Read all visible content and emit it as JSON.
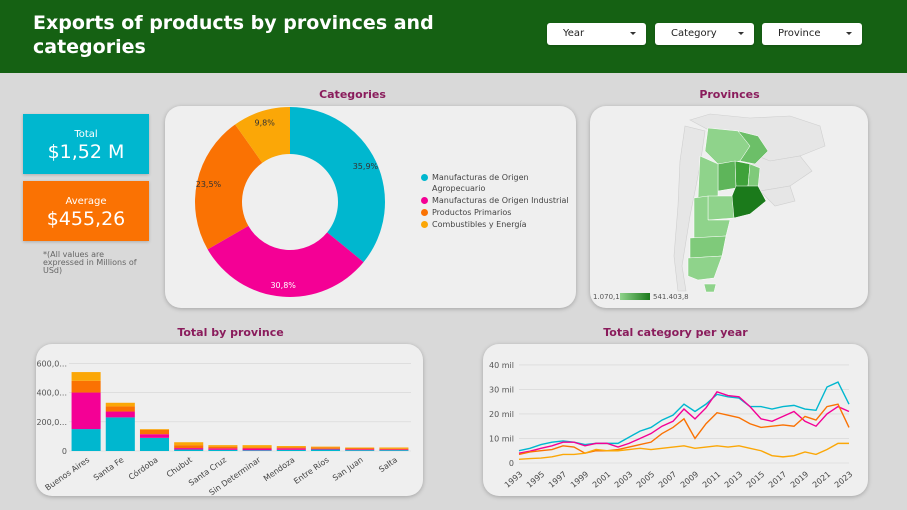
{
  "header": {
    "title": "Exports of products by provinces and categories",
    "filters": [
      {
        "label": "Year"
      },
      {
        "label": "Category"
      },
      {
        "label": "Province"
      }
    ]
  },
  "kpis": {
    "total": {
      "label": "Total",
      "value": "$1,52 M",
      "color": "#00b7cf"
    },
    "average": {
      "label": "Average",
      "value": "$455,26",
      "color": "#fa7203"
    },
    "note": "*(All values are expressed in Millions of USd)"
  },
  "sections": {
    "categories": "Categories",
    "provinces": "Provinces",
    "by_province": "Total by province",
    "per_year": "Total category per year"
  },
  "colors": {
    "header": "#156113",
    "agro": "#00b7cf",
    "industrial": "#f40095",
    "primarios": "#fa7203",
    "energia": "#fba707",
    "map_dark": "#1b7a1b",
    "map_light": "#8fd38b"
  },
  "map": {
    "legend_min": "1.070,1",
    "legend_max": "541.403,8"
  },
  "chart_data": [
    {
      "type": "pie",
      "title": "Categories",
      "categories": [
        "Manufacturas de Origen Agropecuario",
        "Manufacturas de Origen Industrial",
        "Productos Primarios",
        "Combustibles y Energía"
      ],
      "values": [
        35.9,
        30.8,
        23.5,
        9.8
      ],
      "labels": [
        "35,9%",
        "30,8%",
        "23,5%",
        "9,8%"
      ],
      "colors": [
        "#00b7cf",
        "#f40095",
        "#fa7203",
        "#fba707"
      ],
      "legend": "right"
    },
    {
      "type": "bar",
      "stacked": true,
      "title": "Total by province",
      "categories": [
        "Buenos Aires",
        "Santa Fe",
        "Córdoba",
        "Chubut",
        "Santa Cruz",
        "Sin Determinar",
        "Mendoza",
        "Entre Ríos",
        "San Juan",
        "Salta"
      ],
      "series": [
        {
          "values": [
            150,
            230,
            90,
            10,
            8,
            5,
            8,
            10,
            6,
            6
          ],
          "color": "#00b7cf"
        },
        {
          "values": [
            250,
            40,
            25,
            10,
            10,
            12,
            10,
            5,
            6,
            5
          ],
          "color": "#f40095"
        },
        {
          "values": [
            80,
            35,
            30,
            20,
            12,
            8,
            8,
            10,
            8,
            5
          ],
          "color": "#fa7203"
        },
        {
          "values": [
            60,
            25,
            5,
            20,
            10,
            15,
            8,
            5,
            4,
            8
          ],
          "color": "#fba707"
        }
      ],
      "yticks": [
        "0",
        "200,0...",
        "400,0...",
        "600,0..."
      ],
      "ylim": [
        0,
        650
      ],
      "grid": true
    },
    {
      "type": "line",
      "title": "Total category per year",
      "x": [
        1993,
        1994,
        1995,
        1996,
        1997,
        1998,
        1999,
        2000,
        2001,
        2002,
        2003,
        2004,
        2005,
        2006,
        2007,
        2008,
        2009,
        2010,
        2011,
        2012,
        2013,
        2014,
        2015,
        2016,
        2017,
        2018,
        2019,
        2020,
        2021,
        2022,
        2023
      ],
      "xticks": [
        "1993",
        "1995",
        "1997",
        "1999",
        "2001",
        "2003",
        "2005",
        "2007",
        "2009",
        "2011",
        "2013",
        "2015",
        "2017",
        "2019",
        "2021",
        "2023"
      ],
      "yticks": [
        "0",
        "10 mil",
        "20 mil",
        "30 mil",
        "40 mil"
      ],
      "ylim": [
        0,
        42000
      ],
      "series": [
        {
          "color": "#00b7cf",
          "values": [
            5000,
            6000,
            7500,
            8500,
            9000,
            8500,
            7500,
            8000,
            8000,
            8000,
            10500,
            13000,
            14500,
            17500,
            19500,
            24000,
            21000,
            24000,
            28000,
            27000,
            26500,
            23000,
            23000,
            22000,
            23000,
            23500,
            22000,
            21500,
            31000,
            33000,
            24000
          ]
        },
        {
          "color": "#f40095",
          "values": [
            4000,
            4800,
            6000,
            7000,
            8500,
            8500,
            7000,
            8000,
            8000,
            6500,
            8000,
            10000,
            12000,
            15000,
            17000,
            22000,
            18000,
            22500,
            29000,
            27500,
            27000,
            23000,
            18000,
            17000,
            19000,
            21000,
            17000,
            15000,
            20000,
            23000,
            21000
          ]
        },
        {
          "color": "#fa7203",
          "values": [
            3500,
            4500,
            5000,
            5500,
            7000,
            6500,
            4000,
            5000,
            5000,
            5500,
            6500,
            7500,
            8500,
            12000,
            14500,
            18000,
            10000,
            16000,
            20500,
            19500,
            18500,
            16000,
            14500,
            15000,
            15500,
            15000,
            19000,
            17500,
            23000,
            24000,
            14500
          ]
        },
        {
          "color": "#fba707",
          "values": [
            1500,
            1800,
            2000,
            2500,
            3500,
            3500,
            4000,
            5500,
            5000,
            5000,
            5500,
            6000,
            5500,
            6000,
            6500,
            7000,
            6000,
            6500,
            7000,
            6500,
            7000,
            6000,
            5000,
            3000,
            2500,
            3000,
            4500,
            3500,
            5500,
            8000,
            8000
          ]
        }
      ],
      "grid": true
    }
  ]
}
